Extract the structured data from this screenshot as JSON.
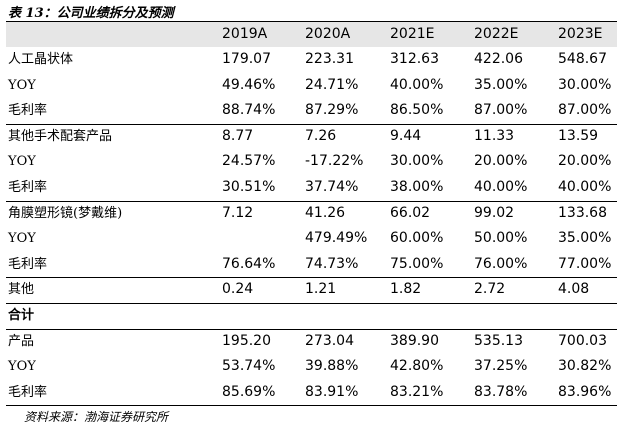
{
  "header": {
    "title": "表 13：公司业绩拆分及预测"
  },
  "table": {
    "columns": [
      "2019A",
      "2020A",
      "2021E",
      "2022E",
      "2023E"
    ],
    "rows": [
      [
        "人工晶状体",
        "179.07",
        "223.31",
        "312.63",
        "422.06",
        "548.67"
      ],
      [
        "YOY",
        "49.46%",
        "24.71%",
        "40.00%",
        "35.00%",
        "30.00%"
      ],
      [
        "毛利率",
        "88.74%",
        "87.29%",
        "86.50%",
        "87.00%",
        "87.00%"
      ],
      [
        "其他手术配套产品",
        "8.77",
        "7.26",
        "9.44",
        "11.33",
        "13.59"
      ],
      [
        "YOY",
        "24.57%",
        "-17.22%",
        "30.00%",
        "20.00%",
        "20.00%"
      ],
      [
        "毛利率",
        "30.51%",
        "37.74%",
        "38.00%",
        "40.00%",
        "40.00%"
      ],
      [
        "角膜塑形镜(梦戴维)",
        "7.12",
        "41.26",
        "66.02",
        "99.02",
        "133.68"
      ],
      [
        "YOY",
        null,
        "479.49%",
        "60.00%",
        "50.00%",
        "35.00%"
      ],
      [
        "毛利率",
        "76.64%",
        "74.73%",
        "75.00%",
        "76.00%",
        "77.00%"
      ],
      [
        "其他",
        "0.24",
        "1.21",
        "1.82",
        "2.72",
        "4.08"
      ],
      [
        "合计"
      ],
      [
        "产品",
        "195.20",
        "273.04",
        "389.90",
        "535.13",
        "700.03"
      ],
      [
        "YOY",
        "53.74%",
        "39.88%",
        "42.80%",
        "37.25%",
        "30.82%"
      ],
      [
        "毛利率",
        "85.69%",
        "83.91%",
        "83.21%",
        "83.78%",
        "83.96%"
      ]
    ]
  },
  "note": "资料来源：渤海证券研究所"
}
